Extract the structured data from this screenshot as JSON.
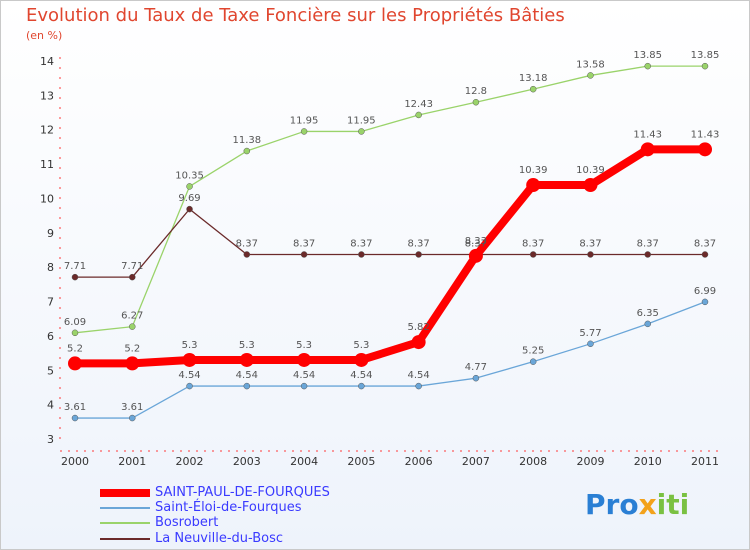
{
  "title": "Evolution du Taux de Taxe Foncière sur les Propriétés Bâties",
  "subtitle": "(en %)",
  "logo": {
    "parts": [
      "Pro",
      "x",
      "iti"
    ],
    "colors": [
      "#2a7fd4",
      "#f3a21b",
      "#7ac142"
    ]
  },
  "chart_data": {
    "type": "line",
    "categories": [
      "2000",
      "2001",
      "2002",
      "2003",
      "2004",
      "2005",
      "2006",
      "2007",
      "2008",
      "2009",
      "2010",
      "2011"
    ],
    "ylim": [
      3,
      14
    ],
    "yticks": [
      3,
      4,
      5,
      6,
      7,
      8,
      9,
      10,
      11,
      12,
      13,
      14
    ],
    "grid": false,
    "legend_position": "bottom-left",
    "series": [
      {
        "name": "SAINT-PAUL-DE-FOURQUES",
        "color": "#ff0000",
        "width": 8,
        "dot": 7,
        "values": [
          5.2,
          5.2,
          5.3,
          5.3,
          5.3,
          5.3,
          5.82,
          8.33,
          10.39,
          10.39,
          11.43,
          11.43
        ],
        "labels": [
          "5.2",
          "5.2",
          "5.3",
          "5.3",
          "5.3",
          "5.3",
          "5.82",
          "8.33",
          "10.39",
          "10.39",
          "11.43",
          "11.43"
        ]
      },
      {
        "name": "Saint-Éloi-de-Fourques",
        "color": "#6aa6d8",
        "width": 1.3,
        "dot": 3,
        "values": [
          3.61,
          3.61,
          4.54,
          4.54,
          4.54,
          4.54,
          4.54,
          4.77,
          5.25,
          5.77,
          6.35,
          6.99
        ],
        "labels": [
          "3.61",
          "3.61",
          "4.54",
          "4.54",
          "4.54",
          "4.54",
          "4.54",
          "4.77",
          "5.25",
          "5.77",
          "6.35",
          "6.99"
        ]
      },
      {
        "name": "Bosrobert",
        "color": "#9ad36a",
        "width": 1.3,
        "dot": 3,
        "values": [
          6.09,
          6.27,
          10.35,
          11.38,
          11.95,
          11.95,
          12.43,
          12.8,
          13.18,
          13.58,
          13.85,
          13.85
        ],
        "labels": [
          "6.09",
          "6.27",
          "10.35",
          "11.38",
          "11.95",
          "11.95",
          "12.43",
          "12.8",
          "13.18",
          "13.58",
          "13.85",
          "13.85"
        ]
      },
      {
        "name": "La Neuville-du-Bosc",
        "color": "#6b2a2a",
        "width": 1.3,
        "dot": 3,
        "values": [
          7.71,
          7.71,
          9.69,
          8.37,
          8.37,
          8.37,
          8.37,
          8.37,
          8.37,
          8.37,
          8.37,
          8.37
        ],
        "labels": [
          "7.71",
          "7.71",
          "9.69",
          "8.37",
          "8.37",
          "8.37",
          "8.37",
          "8.37",
          "8.37",
          "8.37",
          "8.37",
          "8.37"
        ]
      }
    ]
  }
}
